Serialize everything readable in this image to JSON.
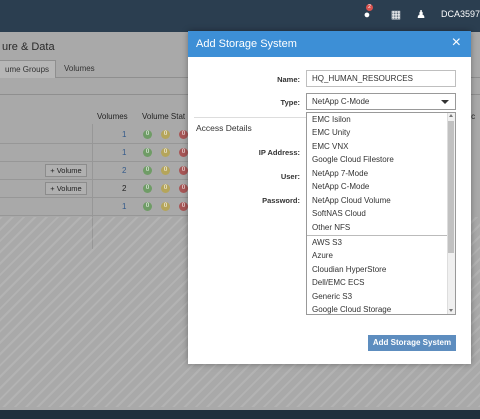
{
  "topbar": {
    "notification_count": "2",
    "user_label": "DCA3597",
    "colors": {
      "bg": "#2b3e50"
    },
    "icons": [
      "notification-icon",
      "clipboard-icon",
      "user-icon"
    ]
  },
  "page": {
    "title": "ure & Data",
    "tabs": [
      "ume Groups",
      "Volumes"
    ],
    "table": {
      "headers": [
        "Volumes",
        "Volume Stat",
        "ercc"
      ],
      "rows": [
        {
          "button": "",
          "volumes": "1"
        },
        {
          "button": "",
          "volumes": "1"
        },
        {
          "button": "+ Volume",
          "volumes": "2"
        },
        {
          "button": "+ Volume",
          "volumes": "2"
        },
        {
          "button": "",
          "volumes": "1"
        }
      ]
    }
  },
  "modal": {
    "title": "Add Storage System",
    "close_glyph": "×",
    "name_label": "Name:",
    "name_value": "HQ_HUMAN_RESOURCES",
    "type_label": "Type:",
    "type_value": "NetApp C-Mode",
    "section_title": "Access Details",
    "ip_label": "IP Address:",
    "user_label": "User:",
    "password_label": "Password:",
    "submit_label": "Add Storage System",
    "colors": {
      "header": "#3d8fd6",
      "submit": "#5d8dbf"
    }
  },
  "dropdown": {
    "group1": [
      "EMC Isilon",
      "EMC Unity",
      "EMC VNX",
      "Google Cloud Filestore",
      "NetApp 7-Mode",
      "NetApp C-Mode",
      "NetApp Cloud Volume",
      "SoftNAS Cloud",
      "Other NFS"
    ],
    "group2": [
      "AWS S3",
      "Azure",
      "Cloudian HyperStore",
      "Dell/EMC ECS",
      "Generic S3",
      "Google Cloud Storage"
    ]
  }
}
